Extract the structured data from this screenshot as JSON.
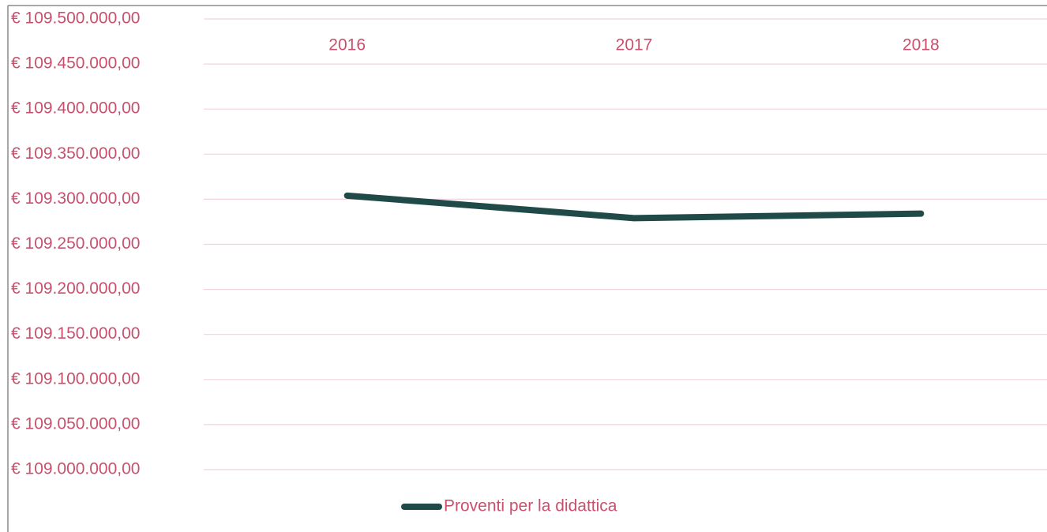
{
  "chart_data": {
    "type": "line",
    "categories": [
      "2016",
      "2017",
      "2018"
    ],
    "series": [
      {
        "name": "Proventi per la didattica",
        "color": "#1f4a48",
        "values": [
          109304000,
          109279000,
          109284000
        ]
      }
    ],
    "ylim": [
      109000000,
      109500000
    ],
    "yticks": [
      {
        "value": 109000000,
        "label": "€ 109.000.000,00"
      },
      {
        "value": 109050000,
        "label": "€ 109.050.000,00"
      },
      {
        "value": 109100000,
        "label": "€ 109.100.000,00"
      },
      {
        "value": 109150000,
        "label": "€ 109.150.000,00"
      },
      {
        "value": 109200000,
        "label": "€ 109.200.000,00"
      },
      {
        "value": 109250000,
        "label": "€ 109.250.000,00"
      },
      {
        "value": 109300000,
        "label": "€ 109.300.000,00"
      },
      {
        "value": 109350000,
        "label": "€ 109.350.000,00"
      },
      {
        "value": 109400000,
        "label": "€ 109.400.000,00"
      },
      {
        "value": 109450000,
        "label": "€ 109.450.000,00"
      },
      {
        "value": 109500000,
        "label": "€ 109.500.000,00"
      }
    ],
    "grid": true,
    "legend": "bottom"
  }
}
